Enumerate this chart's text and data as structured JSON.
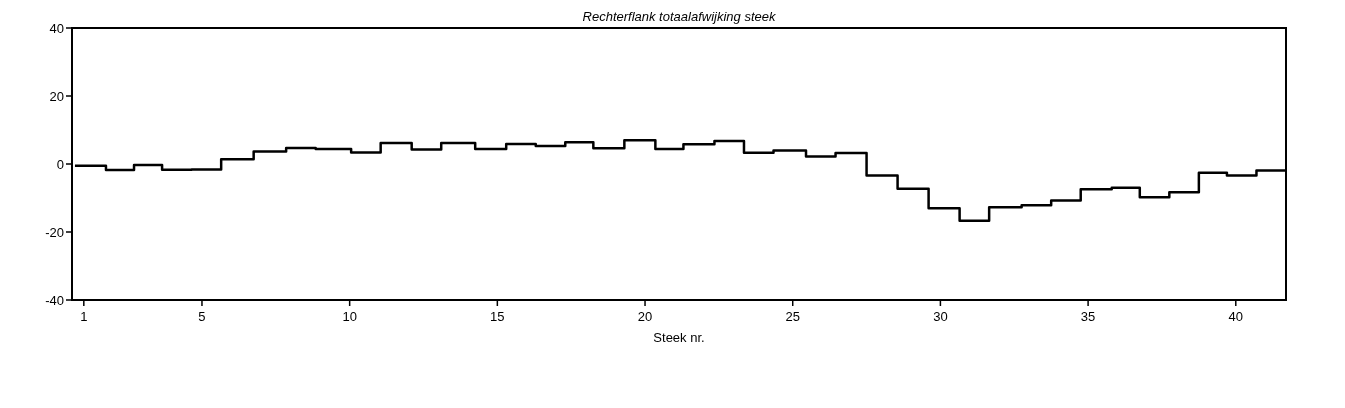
{
  "chart_data": {
    "type": "step",
    "title": "Rechterflank totaalafwijking steek",
    "xlabel": "Steek nr.",
    "x": [
      0.7,
      1.75,
      2.7,
      3.65,
      4.65,
      5.65,
      6.75,
      7.85,
      8.85,
      10.05,
      11.05,
      12.1,
      13.1,
      14.25,
      15.3,
      16.3,
      17.3,
      18.25,
      19.3,
      20.35,
      21.3,
      22.35,
      23.35,
      24.35,
      25.45,
      26.45,
      27.5,
      28.55,
      29.6,
      30.65,
      31.65,
      32.75,
      33.75,
      34.75,
      35.8,
      36.75,
      37.75,
      38.75,
      39.7,
      40.7,
      41.7
    ],
    "series": [
      {
        "color": "#000000",
        "values": [
          -0.5,
          -1.8,
          -0.3,
          -1.7,
          -1.6,
          1.4,
          3.7,
          4.7,
          4.4,
          3.4,
          6.2,
          4.3,
          6.2,
          4.4,
          5.9,
          5.3,
          6.4,
          4.6,
          7.0,
          4.4,
          5.8,
          6.8,
          3.3,
          4.0,
          2.2,
          3.2,
          -3.4,
          -7.3,
          -13,
          -16.7,
          -12.7,
          -12.1,
          -10.7,
          -7.4,
          -7.0,
          -9.8,
          -8.3,
          -2.6,
          -3.4,
          -1.9,
          -1.9
        ]
      }
    ],
    "xlim": [
      0.6,
      41.7
    ],
    "xticks": [
      1,
      5,
      10,
      15,
      20,
      25,
      30,
      35,
      40
    ],
    "ylim": [
      -40,
      40
    ],
    "yticks": [
      -40,
      -20,
      0,
      20,
      40
    ],
    "grid": false,
    "line_style": "solid",
    "marker": "none"
  }
}
